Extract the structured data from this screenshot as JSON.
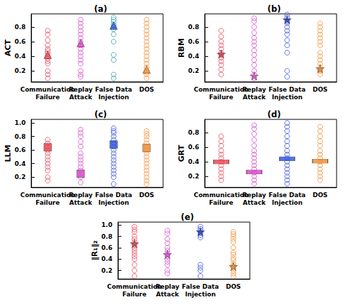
{
  "chart_data": [
    {
      "type": "scatter",
      "title": "(a)",
      "ylabel": "ACT",
      "categories": [
        "Communication\nFailure",
        "Replay\nAttack",
        "False Data\nInjection",
        "DOS"
      ],
      "colors": [
        "#e94b5a",
        "#d64fc8",
        "#3aa0b0",
        "#f0923a"
      ],
      "highlight_colors": [
        "#e8414f",
        "#d63fc4",
        "#2a50e0",
        "#f08a2c"
      ],
      "marker": "triangle",
      "values": [
        [
          0.75,
          0.7,
          0.62,
          0.55,
          0.5,
          0.47,
          0.44,
          0.4,
          0.37,
          0.33,
          0.3,
          0.2,
          0.15,
          0.1
        ],
        [
          0.9,
          0.85,
          0.8,
          0.75,
          0.7,
          0.65,
          0.6,
          0.55,
          0.5,
          0.45,
          0.4,
          0.35,
          0.3,
          0.2,
          0.15,
          0.12
        ],
        [
          0.93,
          0.9,
          0.87,
          0.83,
          0.8,
          0.77,
          0.7,
          0.6,
          0.42,
          0.35,
          0.15,
          0.1
        ],
        [
          0.9,
          0.85,
          0.8,
          0.75,
          0.7,
          0.65,
          0.6,
          0.55,
          0.5,
          0.45,
          0.4,
          0.35,
          0.3,
          0.25,
          0.2,
          0.18,
          0.15,
          0.1
        ]
      ],
      "highlight": [
        0.42,
        0.58,
        0.82,
        0.22
      ],
      "ylim": [
        0.05,
        0.98
      ],
      "yticks": [
        0.2,
        0.4,
        0.6,
        0.8
      ]
    },
    {
      "type": "scatter",
      "title": "(b)",
      "ylabel": "RBM",
      "categories": [
        "Communication\nFailure",
        "Replay\nAttack",
        "False Data\nInjection",
        "DOS"
      ],
      "colors": [
        "#e94b5a",
        "#d64fc8",
        "#3a56e0",
        "#f0923a"
      ],
      "highlight_colors": [
        "#c8303f",
        "#d63fc4",
        "#1c2fb0",
        "#e07a20"
      ],
      "marker": "star",
      "values": [
        [
          0.75,
          0.67,
          0.6,
          0.55,
          0.5,
          0.45,
          0.42,
          0.38,
          0.33,
          0.28,
          0.22,
          0.15
        ],
        [
          0.92,
          0.88,
          0.8,
          0.72,
          0.65,
          0.6,
          0.55,
          0.48,
          0.42,
          0.35,
          0.28,
          0.2,
          0.15,
          0.1
        ],
        [
          0.97,
          0.93,
          0.88,
          0.85,
          0.8,
          0.75,
          0.7,
          0.62,
          0.55,
          0.45,
          0.2,
          0.12
        ],
        [
          0.85,
          0.8,
          0.75,
          0.7,
          0.65,
          0.6,
          0.55,
          0.45,
          0.4,
          0.35,
          0.3,
          0.25,
          0.22,
          0.2,
          0.15
        ]
      ],
      "highlight": [
        0.43,
        0.13,
        0.9,
        0.23
      ],
      "ylim": [
        0.05,
        0.98
      ],
      "yticks": [
        0.2,
        0.4,
        0.6,
        0.8
      ]
    },
    {
      "type": "scatter",
      "title": "(c)",
      "ylabel": "LLM",
      "categories": [
        "Communication\nFailure",
        "Replay\nAttack",
        "False Data\nInjection",
        "DOS"
      ],
      "colors": [
        "#e94b5a",
        "#d64fc8",
        "#3a56e0",
        "#f0923a"
      ],
      "highlight_colors": [
        "#e8414f",
        "#d63fc4",
        "#2a50e0",
        "#f08a2c"
      ],
      "marker": "square",
      "values": [
        [
          0.75,
          0.7,
          0.65,
          0.6,
          0.55,
          0.5,
          0.45,
          0.4,
          0.35,
          0.3,
          0.2,
          0.15
        ],
        [
          0.9,
          0.85,
          0.8,
          0.72,
          0.65,
          0.55,
          0.5,
          0.45,
          0.4,
          0.35,
          0.3,
          0.2,
          0.12
        ],
        [
          0.92,
          0.88,
          0.85,
          0.8,
          0.75,
          0.7,
          0.65,
          0.6,
          0.55,
          0.5,
          0.45,
          0.4,
          0.35,
          0.3,
          0.25,
          0.2,
          0.1
        ],
        [
          0.88,
          0.84,
          0.8,
          0.75,
          0.7,
          0.65,
          0.6,
          0.55,
          0.5,
          0.45,
          0.4,
          0.35,
          0.3,
          0.25,
          0.2,
          0.15,
          0.1
        ]
      ],
      "highlight": [
        0.64,
        0.25,
        0.68,
        0.63
      ],
      "ylim": [
        0.05,
        1.05
      ],
      "yticks": [
        0.2,
        0.4,
        0.6,
        0.8,
        {
          "value": 1,
          "label": "1.0"
        }
      ]
    },
    {
      "type": "scatter",
      "title": "(d)",
      "ylabel": "GRT",
      "categories": [
        "Communication\nFailure",
        "Replay\nAttack",
        "False Data\nInjection",
        "DOS"
      ],
      "colors": [
        "#e94b5a",
        "#d64fc8",
        "#3a56e0",
        "#f0923a"
      ],
      "highlight_colors": [
        "#e8414f",
        "#d63fc4",
        "#2a50e0",
        "#f08a2c"
      ],
      "marker": "dash",
      "values": [
        [
          0.75,
          0.68,
          0.62,
          0.55,
          0.5,
          0.45,
          0.4,
          0.35,
          0.3,
          0.25,
          0.2,
          0.15
        ],
        [
          0.9,
          0.85,
          0.78,
          0.7,
          0.62,
          0.55,
          0.5,
          0.45,
          0.4,
          0.35,
          0.3,
          0.25,
          0.2,
          0.15,
          0.1
        ],
        [
          0.93,
          0.88,
          0.82,
          0.75,
          0.68,
          0.62,
          0.55,
          0.5,
          0.45,
          0.4,
          0.35,
          0.3,
          0.25,
          0.2,
          0.15,
          0.1
        ],
        [
          0.88,
          0.82,
          0.75,
          0.68,
          0.62,
          0.55,
          0.5,
          0.45,
          0.4,
          0.35,
          0.3,
          0.25,
          0.2,
          0.15
        ]
      ],
      "highlight": [
        0.4,
        0.26,
        0.44,
        0.41
      ],
      "ylim": [
        0.05,
        0.98
      ],
      "yticks": [
        0.2,
        0.4,
        0.6,
        0.8
      ]
    },
    {
      "type": "scatter",
      "title": "(e)",
      "ylabel": "‖R₁‖₂",
      "categories": [
        "Communication\nFailure",
        "Replay\nAttack",
        "False Data\nInjection",
        "DOS"
      ],
      "colors": [
        "#e94b5a",
        "#d64fc8",
        "#3a56e0",
        "#f0923a"
      ],
      "highlight_colors": [
        "#c8303f",
        "#d63fc4",
        "#1c2fb0",
        "#e07a20"
      ],
      "marker": "star",
      "values": [
        [
          0.97,
          0.92,
          0.88,
          0.8,
          0.75,
          0.7,
          0.65,
          0.6,
          0.55,
          0.5,
          0.45,
          0.4,
          0.3,
          0.2,
          0.1
        ],
        [
          0.9,
          0.85,
          0.75,
          0.68,
          0.6,
          0.55,
          0.5,
          0.45,
          0.4,
          0.35,
          0.3,
          0.2,
          0.15
        ],
        [
          0.97,
          0.93,
          0.9,
          0.86,
          0.82,
          0.78,
          0.3,
          0.25,
          0.2,
          0.1
        ],
        [
          0.88,
          0.84,
          0.8,
          0.75,
          0.7,
          0.6,
          0.52,
          0.48,
          0.42,
          0.38,
          0.32,
          0.28,
          0.25,
          0.2,
          0.15,
          0.1
        ]
      ],
      "highlight": [
        0.67,
        0.48,
        0.88,
        0.27
      ],
      "ylim": [
        0.05,
        1.05
      ],
      "yticks": [
        0.2,
        0.4,
        0.6,
        0.8,
        {
          "value": 1,
          "label": "1.0"
        }
      ]
    }
  ]
}
